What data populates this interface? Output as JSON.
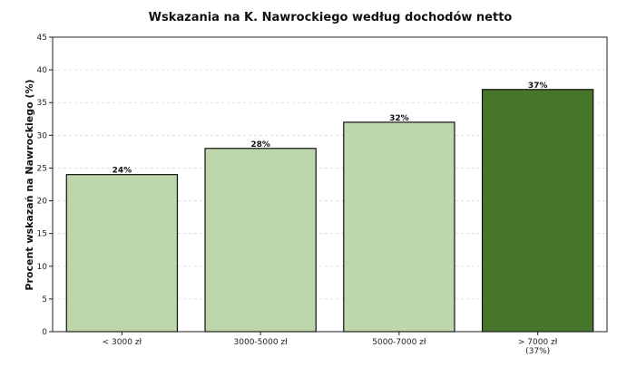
{
  "chart_data": {
    "type": "bar",
    "title": "Wskazania na K. Nawrockiego według dochodów netto",
    "xlabel": "",
    "ylabel": "Procent wskazań na Nawrockiego (%)",
    "categories": [
      "< 3000 zł",
      "3000-5000 zł",
      "5000-7000 zł",
      "> 7000 zł\n(37%)"
    ],
    "values": [
      24,
      28,
      32,
      37
    ],
    "data_labels": [
      "24%",
      "28%",
      "32%",
      "37%"
    ],
    "ylim": [
      0,
      45
    ],
    "yticks": [
      0,
      5,
      10,
      15,
      20,
      25,
      30,
      35,
      40,
      45
    ],
    "grid": "y-dashed",
    "colors": {
      "bar": "#bdd6ac",
      "highlight": "#48752c",
      "edge": "#111111"
    },
    "highlight_index": 3
  }
}
